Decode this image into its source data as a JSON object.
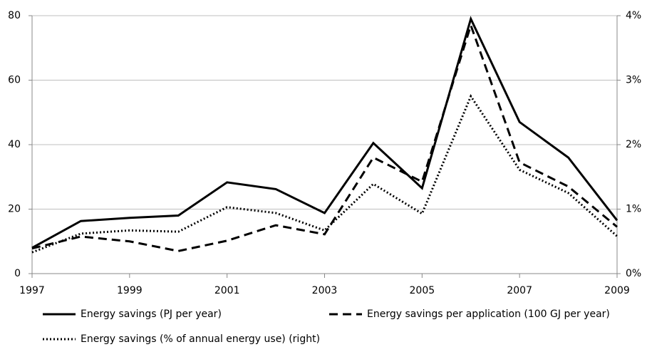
{
  "chart_data": {
    "type": "line",
    "x": [
      1997,
      1998,
      1999,
      2000,
      2001,
      2002,
      2003,
      2004,
      2005,
      2006,
      2007,
      2008,
      2009
    ],
    "xlim": [
      1997,
      2009
    ],
    "xticks": [
      1997,
      1999,
      2001,
      2003,
      2005,
      2007,
      2009
    ],
    "ylim": [
      0,
      80
    ],
    "yticks": [
      0,
      20,
      40,
      60,
      80
    ],
    "y2lim": [
      0,
      4
    ],
    "y2ticks": [
      {
        "value": 0,
        "label": "0%"
      },
      {
        "value": 1,
        "label": "1%"
      },
      {
        "value": 2,
        "label": "2%"
      },
      {
        "value": 3,
        "label": "3%"
      },
      {
        "value": 4,
        "label": "4%"
      }
    ],
    "grid": true,
    "legend": "bottom",
    "series": [
      {
        "name": "Energy savings (PJ per year)",
        "color": "#000000",
        "style": "solid",
        "values": [
          8,
          16.3,
          17.3,
          18,
          28.3,
          26.2,
          18.8,
          40.5,
          26.5,
          79,
          47,
          36,
          16.5
        ]
      },
      {
        "name": "Energy savings per application (100 GJ per year)",
        "color": "#000000",
        "style": "dashed",
        "values": [
          7.8,
          11.5,
          10,
          7,
          10.2,
          15,
          12.2,
          36,
          28.5,
          77,
          34.5,
          27,
          14.5
        ]
      },
      {
        "name": "Energy savings (% of annual energy use) (right)",
        "color": "#000000",
        "style": "dotted",
        "axis": "y2",
        "values": [
          0.33,
          0.62,
          0.67,
          0.65,
          1.03,
          0.94,
          0.67,
          1.39,
          0.93,
          2.75,
          1.61,
          1.25,
          0.58
        ]
      }
    ]
  }
}
